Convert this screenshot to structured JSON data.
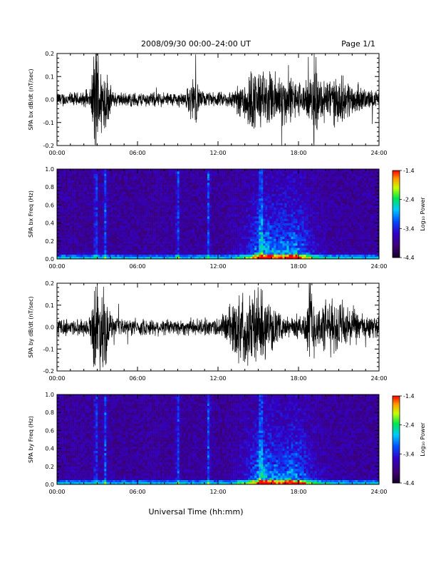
{
  "header": {
    "title": "2008/09/30  00:00–24:00 UT",
    "page": "Page 1/1"
  },
  "chart_data": [
    {
      "type": "line",
      "panel": "bx-waveform",
      "ylabel": "SPA bx dB/dt (nT/sec)",
      "xlim": [
        0,
        24
      ],
      "ylim": [
        -0.2,
        0.2
      ],
      "x_ticks": [
        "00:00",
        "06:00",
        "12:00",
        "18:00",
        "24:00"
      ],
      "y_ticks": [
        "0.2",
        "0.1",
        "0.0",
        "-0.1",
        "-0.2"
      ],
      "activity_bursts": [
        {
          "t": 2.9,
          "amp": 0.22,
          "width": 0.25
        },
        {
          "t": 3.5,
          "amp": 0.1,
          "width": 0.4
        },
        {
          "t": 10.2,
          "amp": 0.06,
          "width": 0.4
        },
        {
          "t": 14.5,
          "amp": 0.07,
          "width": 1.0
        },
        {
          "t": 16.5,
          "amp": 0.07,
          "width": 1.5
        },
        {
          "t": 19.2,
          "amp": 0.2,
          "width": 0.15
        },
        {
          "t": 20.5,
          "amp": 0.06,
          "width": 2.0
        }
      ],
      "baseline_amp": 0.025
    },
    {
      "type": "heatmap",
      "panel": "bx-spectrogram",
      "ylabel": "SPA bx Freq (Hz)",
      "xlim": [
        0,
        24
      ],
      "ylim": [
        0,
        1.0
      ],
      "x_ticks": [
        "00:00",
        "06:00",
        "12:00",
        "18:00",
        "24:00"
      ],
      "y_ticks": [
        "1.0",
        "0.8",
        "0.6",
        "0.4",
        "0.2",
        "0.0"
      ],
      "colorbar_label": "Log₁₀ Power",
      "colorbar_ticks": [
        "-1.4",
        "-2.4",
        "-3.4",
        "-4.4"
      ],
      "color_range": [
        -4.4,
        -1.4
      ]
    },
    {
      "type": "line",
      "panel": "by-waveform",
      "ylabel": "SPA by dB/dt (nT/sec)",
      "xlim": [
        0,
        24
      ],
      "ylim": [
        -0.2,
        0.2
      ],
      "x_ticks": [
        "00:00",
        "06:00",
        "12:00",
        "18:00",
        "24:00"
      ],
      "y_ticks": [
        "0.2",
        "0.1",
        "0.0",
        "-0.1",
        "-0.2"
      ],
      "activity_bursts": [
        {
          "t": 2.9,
          "amp": 0.14,
          "width": 0.3
        },
        {
          "t": 3.5,
          "amp": 0.12,
          "width": 0.4
        },
        {
          "t": 13.5,
          "amp": 0.07,
          "width": 1.0
        },
        {
          "t": 15.0,
          "amp": 0.1,
          "width": 1.2
        },
        {
          "t": 18.9,
          "amp": 0.19,
          "width": 0.2
        },
        {
          "t": 20.5,
          "amp": 0.07,
          "width": 2.0
        }
      ],
      "baseline_amp": 0.03
    },
    {
      "type": "heatmap",
      "panel": "by-spectrogram",
      "ylabel": "SPA by Freq (Hz)",
      "xlim": [
        0,
        24
      ],
      "ylim": [
        0,
        1.0
      ],
      "x_ticks": [
        "00:00",
        "06:00",
        "12:00",
        "18:00",
        "24:00"
      ],
      "y_ticks": [
        "1.0",
        "0.8",
        "0.6",
        "0.4",
        "0.2",
        "0.0"
      ],
      "colorbar_label": "Log₁₀ Power",
      "colorbar_ticks": [
        "-1.4",
        "-2.4",
        "-3.4",
        "-4.4"
      ],
      "color_range": [
        -4.4,
        -1.4
      ]
    }
  ],
  "footer": {
    "xlabel": "Universal Time (hh:mm)"
  }
}
